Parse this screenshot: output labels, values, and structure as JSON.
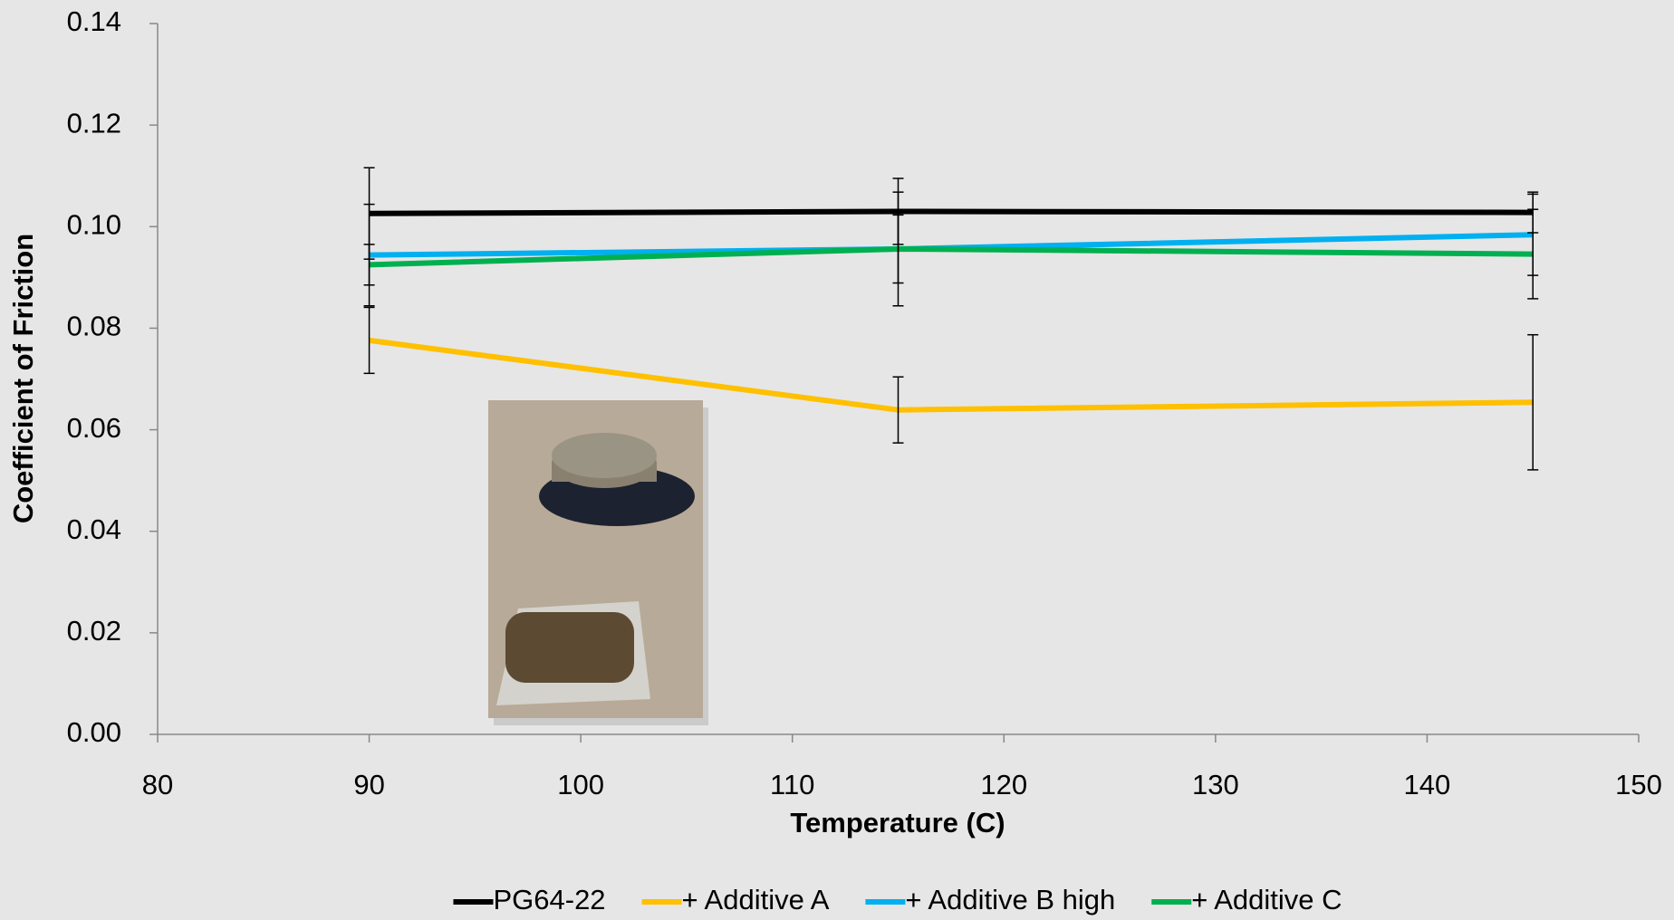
{
  "chart_data": {
    "type": "line",
    "x_label": "Temperature (C)",
    "y_label": "Coefficient of Friction",
    "x": [
      90,
      115,
      145
    ],
    "xlim": [
      80,
      150
    ],
    "xticks": [
      80,
      90,
      100,
      110,
      120,
      130,
      140,
      150
    ],
    "ylim": [
      0,
      0.14
    ],
    "yticks": [
      {
        "value": 0,
        "label": "0.00"
      },
      {
        "value": 0.02,
        "label": "0.02"
      },
      {
        "value": 0.04,
        "label": "0.04"
      },
      {
        "value": 0.06,
        "label": "0.06"
      },
      {
        "value": 0.08,
        "label": "0.08"
      },
      {
        "value": 0.1,
        "label": "0.10"
      },
      {
        "value": 0.12,
        "label": "0.12"
      },
      {
        "value": 0.14,
        "label": "0.14"
      }
    ],
    "legend": "bottom",
    "series": [
      {
        "name": "PG64-22",
        "color": "#000000",
        "values": [
          0.1026,
          0.103,
          0.1028
        ],
        "errors": [
          0.009,
          0.0065,
          0.004
        ]
      },
      {
        "name": "+ Additive A",
        "color": "#ffc000",
        "values": [
          0.0776,
          0.0639,
          0.0654
        ],
        "errors": [
          0.0065,
          0.0065,
          0.0133
        ]
      },
      {
        "name": "+ Additive B high",
        "color": "#00b0f0",
        "values": [
          0.0944,
          0.0956,
          0.0984
        ],
        "errors": [
          0.01,
          0.0067,
          0.008
        ]
      },
      {
        "name": "+ Additive C",
        "color": "#00b050",
        "values": [
          0.0925,
          0.0956,
          0.0946
        ],
        "errors": [
          0.004,
          0.0112,
          0.0088
        ]
      }
    ]
  }
}
